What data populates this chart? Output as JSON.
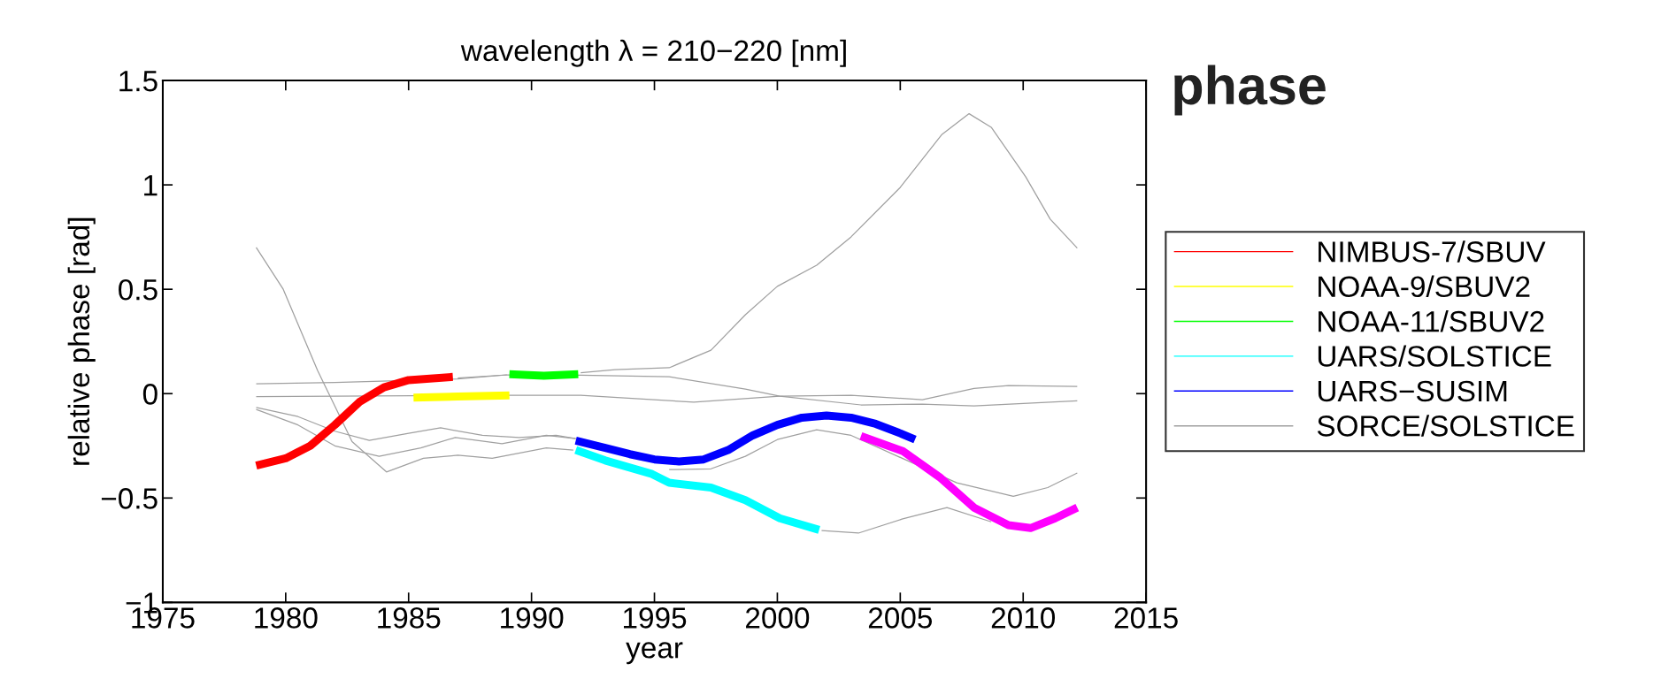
{
  "chart_data": {
    "type": "line",
    "title": "wavelength λ = 210−220 [nm]",
    "xlabel": "year",
    "ylabel": "relative phase [rad]",
    "annotations": [
      "phase"
    ],
    "xlim": [
      1975,
      2015
    ],
    "xticks": [
      1975,
      1980,
      1985,
      1990,
      1995,
      2000,
      2005,
      2010,
      2015
    ],
    "ylim": [
      -1,
      1.5
    ],
    "yticks": [
      {
        "value": -1,
        "label": "−1"
      },
      {
        "value": -0.5,
        "label": "−0.5"
      },
      0,
      0.5,
      1,
      1.5
    ],
    "grid": false,
    "legend": "right",
    "marker": "none",
    "line_style": "solid",
    "series": [
      {
        "name": "NIMBUS-7/SBUV",
        "color": "#ff0000",
        "x": [
          1978.8,
          1980,
          1981,
          1982,
          1983,
          1984,
          1985,
          1986.8
        ],
        "values": [
          -0.345,
          -0.31,
          -0.25,
          -0.15,
          -0.04,
          0.03,
          0.065,
          0.08
        ]
      },
      {
        "name": "NOAA-9/SBUV2",
        "color": "#ffff00",
        "x": [
          1985.2,
          1987,
          1989.1
        ],
        "values": [
          -0.019,
          -0.014,
          -0.008
        ]
      },
      {
        "name": "NOAA-11/SBUV2",
        "color": "#00ff00",
        "x": [
          1989.1,
          1990.5,
          1991.9
        ],
        "values": [
          0.093,
          0.086,
          0.093
        ]
      },
      {
        "name": "UARS/SOLSTICE",
        "color": "#00ffff",
        "x": [
          1991.8,
          1993,
          1994.9,
          1995.6,
          1997.3,
          1998.7,
          2000.1,
          2001.7
        ],
        "values": [
          -0.27,
          -0.32,
          -0.385,
          -0.427,
          -0.45,
          -0.51,
          -0.597,
          -0.653
        ]
      },
      {
        "name": "UARS−SUSIM",
        "color": "#0000ff",
        "x": [
          1991.8,
          1993,
          1994,
          1995,
          1996,
          1997,
          1998,
          1999,
          2000,
          2001,
          2002,
          2003,
          2004,
          2005,
          2005.6
        ],
        "values": [
          -0.225,
          -0.26,
          -0.29,
          -0.315,
          -0.325,
          -0.315,
          -0.27,
          -0.2,
          -0.15,
          -0.115,
          -0.105,
          -0.115,
          -0.145,
          -0.19,
          -0.22
        ]
      },
      {
        "color": "#ff00ff",
        "x": [
          2003.4,
          2005.1,
          2006.6,
          2008,
          2009.4,
          2010.3,
          2011.3,
          2012.2
        ],
        "values": [
          -0.203,
          -0.275,
          -0.4,
          -0.546,
          -0.63,
          -0.644,
          -0.597,
          -0.546
        ]
      },
      {
        "name": "SORCE/SOLSTICE",
        "color": "#a0a0a0",
        "x": [
          1978.8,
          1979.9,
          1981.3,
          1982.7,
          1984.1,
          1985.6,
          1987,
          1988.4,
          1990.6,
          1991.7,
          1996,
          2001.8,
          2003.3,
          2005.1,
          2006.9,
          2008.7
        ],
        "values": [
          0.7,
          0.5,
          0.11,
          -0.23,
          -0.375,
          -0.31,
          -0.295,
          -0.31,
          -0.26,
          -0.27,
          null,
          -0.656,
          -0.668,
          -0.6,
          -0.546,
          -0.614
        ]
      },
      {
        "color": "#a0a0a0",
        "x": [
          1978.8,
          1982,
          1987,
          1989,
          1990.5,
          1992,
          1993.4,
          1995.6,
          1997.3,
          1998.7,
          2000,
          2001.6,
          2003,
          2005,
          2006.7,
          2007.8,
          2008.7,
          2010.1,
          2011.1,
          2012.2
        ],
        "values": [
          0.047,
          0.053,
          0.07,
          0.09,
          null,
          0.1,
          0.115,
          0.124,
          0.208,
          0.378,
          0.514,
          0.615,
          0.751,
          0.988,
          1.242,
          1.341,
          1.276,
          1.039,
          0.836,
          0.697
        ]
      },
      {
        "color": "#a0a0a0",
        "x": [
          1978.8,
          1989,
          1992,
          1996.6,
          2000.1,
          2003,
          2005.9,
          2008,
          2009.4,
          2012.2
        ],
        "values": [
          -0.014,
          -0.008,
          -0.008,
          -0.041,
          -0.012,
          -0.008,
          -0.029,
          0.025,
          0.039,
          0.034
        ]
      },
      {
        "color": "#a0a0a0",
        "x": [
          1987,
          1989,
          1992,
          1995.6,
          1998.7,
          2000.1,
          2003.4,
          2005.9,
          2008,
          2012.2
        ],
        "values": [
          0.075,
          0.09,
          0.088,
          0.081,
          0.022,
          -0.012,
          -0.054,
          -0.05,
          -0.059,
          -0.034
        ]
      },
      {
        "color": "#a0a0a0",
        "x": [
          1978.8,
          1980.5,
          1982,
          1983.4,
          1985,
          1986.3,
          1988,
          1989.5,
          1991,
          1991.8
        ],
        "values": [
          -0.066,
          -0.11,
          -0.18,
          -0.224,
          -0.19,
          -0.164,
          -0.2,
          -0.21,
          -0.2,
          -0.215
        ]
      },
      {
        "color": "#a0a0a0",
        "x": [
          1978.8,
          1980.5,
          1982,
          1983.8,
          1985.5,
          1986.9,
          1988.8,
          1990.6,
          1991.8,
          1993,
          1995.6,
          1997.3,
          1998.7,
          2000,
          2001.6,
          2003,
          2007.3,
          2009.6,
          2011,
          2012.2
        ],
        "values": [
          -0.076,
          -0.15,
          -0.25,
          -0.3,
          -0.26,
          -0.21,
          -0.24,
          -0.2,
          -0.215,
          null,
          -0.364,
          -0.36,
          -0.3,
          -0.22,
          -0.173,
          -0.2,
          -0.427,
          -0.492,
          -0.45,
          -0.38
        ]
      }
    ]
  }
}
